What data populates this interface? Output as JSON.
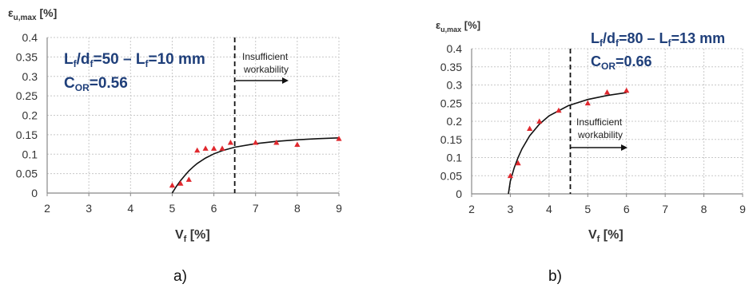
{
  "chart_data": [
    {
      "type": "scatter",
      "panel_label": "a)",
      "xlabel": "V",
      "xlabel_sub": "f",
      "xlabel_unit": " [%]",
      "ylabel": "ε",
      "ylabel_sub": "u,max",
      "ylabel_unit": " [%]",
      "xlim": [
        2,
        9
      ],
      "ylim": [
        0,
        0.4
      ],
      "x_ticks": [
        "2",
        "3",
        "4",
        "5",
        "6",
        "7",
        "8",
        "9"
      ],
      "y_ticks": [
        "0",
        "0.05",
        "0.1",
        "0.15",
        "0.2",
        "0.25",
        "0.3",
        "0.35",
        "0.4"
      ],
      "grid": true,
      "points": [
        {
          "x": 5.0,
          "y": 0.02
        },
        {
          "x": 5.2,
          "y": 0.025
        },
        {
          "x": 5.4,
          "y": 0.035
        },
        {
          "x": 5.6,
          "y": 0.11
        },
        {
          "x": 5.8,
          "y": 0.115
        },
        {
          "x": 6.0,
          "y": 0.115
        },
        {
          "x": 6.2,
          "y": 0.115
        },
        {
          "x": 6.4,
          "y": 0.13
        },
        {
          "x": 7.0,
          "y": 0.13
        },
        {
          "x": 7.5,
          "y": 0.13
        },
        {
          "x": 8.0,
          "y": 0.125
        },
        {
          "x": 9.0,
          "y": 0.14
        }
      ],
      "fit_curve": [
        [
          5.0,
          0.0
        ],
        [
          5.1,
          0.017
        ],
        [
          5.2,
          0.032
        ],
        [
          5.3,
          0.045
        ],
        [
          5.4,
          0.057
        ],
        [
          5.5,
          0.067
        ],
        [
          5.6,
          0.076
        ],
        [
          5.8,
          0.09
        ],
        [
          6.0,
          0.101
        ],
        [
          6.2,
          0.109
        ],
        [
          6.5,
          0.118
        ],
        [
          7.0,
          0.127
        ],
        [
          7.5,
          0.133
        ],
        [
          8.0,
          0.137
        ],
        [
          8.5,
          0.14
        ],
        [
          9.0,
          0.142
        ]
      ],
      "threshold_x": 6.5,
      "annotation_ratio": {
        "L": "L",
        "L_sub": "f",
        "slash": "/d",
        "d_sub": "f",
        "rest": "=50 – L",
        "L2_sub": "f",
        "tail": "=10 mm"
      },
      "annotation_cor": {
        "C": "C",
        "C_sub": "OR",
        "tail": "=0.56"
      },
      "workability": [
        "Insufficient",
        "workability"
      ],
      "colors": {
        "marker": "#e0282e",
        "curve": "#111111",
        "grid": "#c8c8c8",
        "annotation": "#1f3f7a"
      }
    },
    {
      "type": "scatter",
      "panel_label": "b)",
      "xlabel": "V",
      "xlabel_sub": "f",
      "xlabel_unit": " [%]",
      "ylabel": "ε",
      "ylabel_sub": "u,max",
      "ylabel_unit": " [%]",
      "xlim": [
        2,
        9
      ],
      "ylim": [
        0,
        0.4
      ],
      "x_ticks": [
        "2",
        "3",
        "4",
        "5",
        "6",
        "7",
        "8",
        "9"
      ],
      "y_ticks": [
        "0",
        "0.05",
        "0.1",
        "0.15",
        "0.2",
        "0.25",
        "0.3",
        "0.35",
        "0.4"
      ],
      "grid": true,
      "points": [
        {
          "x": 3.0,
          "y": 0.05
        },
        {
          "x": 3.2,
          "y": 0.085
        },
        {
          "x": 3.5,
          "y": 0.18
        },
        {
          "x": 3.75,
          "y": 0.2
        },
        {
          "x": 4.25,
          "y": 0.23
        },
        {
          "x": 5.0,
          "y": 0.25
        },
        {
          "x": 5.5,
          "y": 0.28
        },
        {
          "x": 6.0,
          "y": 0.285
        }
      ],
      "fit_curve": [
        [
          2.95,
          0.0
        ],
        [
          3.0,
          0.035
        ],
        [
          3.1,
          0.072
        ],
        [
          3.2,
          0.1
        ],
        [
          3.3,
          0.124
        ],
        [
          3.5,
          0.16
        ],
        [
          3.75,
          0.192
        ],
        [
          4.0,
          0.215
        ],
        [
          4.5,
          0.243
        ],
        [
          5.0,
          0.26
        ],
        [
          5.5,
          0.271
        ],
        [
          6.0,
          0.279
        ]
      ],
      "threshold_x": 4.55,
      "annotation_ratio": {
        "L": "L",
        "L_sub": "f",
        "slash": "/d",
        "d_sub": "f",
        "rest": "=80 – L",
        "L2_sub": "f",
        "tail": "=13 mm"
      },
      "annotation_cor": {
        "C": "C",
        "C_sub": "OR",
        "tail": "=0.66"
      },
      "workability": [
        "Insufficient",
        "workability"
      ],
      "colors": {
        "marker": "#e0282e",
        "curve": "#111111",
        "grid": "#c8c8c8",
        "annotation": "#1f3f7a"
      }
    }
  ]
}
